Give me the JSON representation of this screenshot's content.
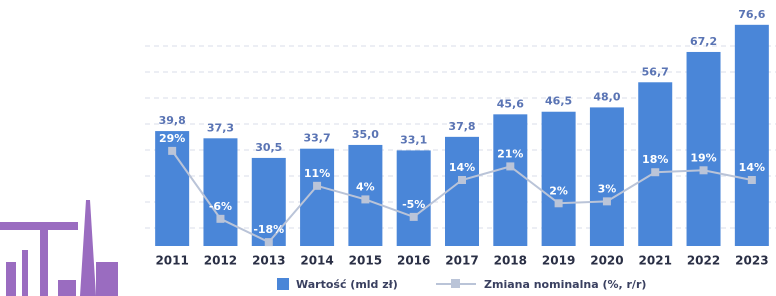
{
  "chart_data": {
    "type": "bar",
    "categories": [
      "2011",
      "2012",
      "2013",
      "2014",
      "2015",
      "2016",
      "2017",
      "2018",
      "2019",
      "2020",
      "2021",
      "2022",
      "2023"
    ],
    "series": [
      {
        "name": "Wartość (mld zł)",
        "color": "#4a86d8",
        "values": [
          39.8,
          37.3,
          30.5,
          33.7,
          35.0,
          33.1,
          37.8,
          45.6,
          46.5,
          48.0,
          56.7,
          67.2,
          76.6
        ],
        "value_labels": [
          "39,8",
          "37,3",
          "30,5",
          "33,7",
          "35,0",
          "33,1",
          "37,8",
          "45,6",
          "46,5",
          "48,0",
          "56,7",
          "67,2",
          "76,6"
        ]
      },
      {
        "name": "Zmiana nominalna (%, r/r)",
        "type": "line",
        "axis": "y2",
        "color": "#bac4d8",
        "values": [
          29,
          -6,
          -18,
          11,
          4,
          -5,
          14,
          21,
          2,
          3,
          18,
          19,
          14
        ],
        "value_labels": [
          "29%",
          "-6%",
          "-18%",
          "11%",
          "4%",
          "-5%",
          "14%",
          "21%",
          "2%",
          "3%",
          "18%",
          "19%",
          "14%"
        ]
      }
    ],
    "ylim": [
      0,
      80
    ],
    "y2lim": [
      -20,
      99
    ]
  }
}
